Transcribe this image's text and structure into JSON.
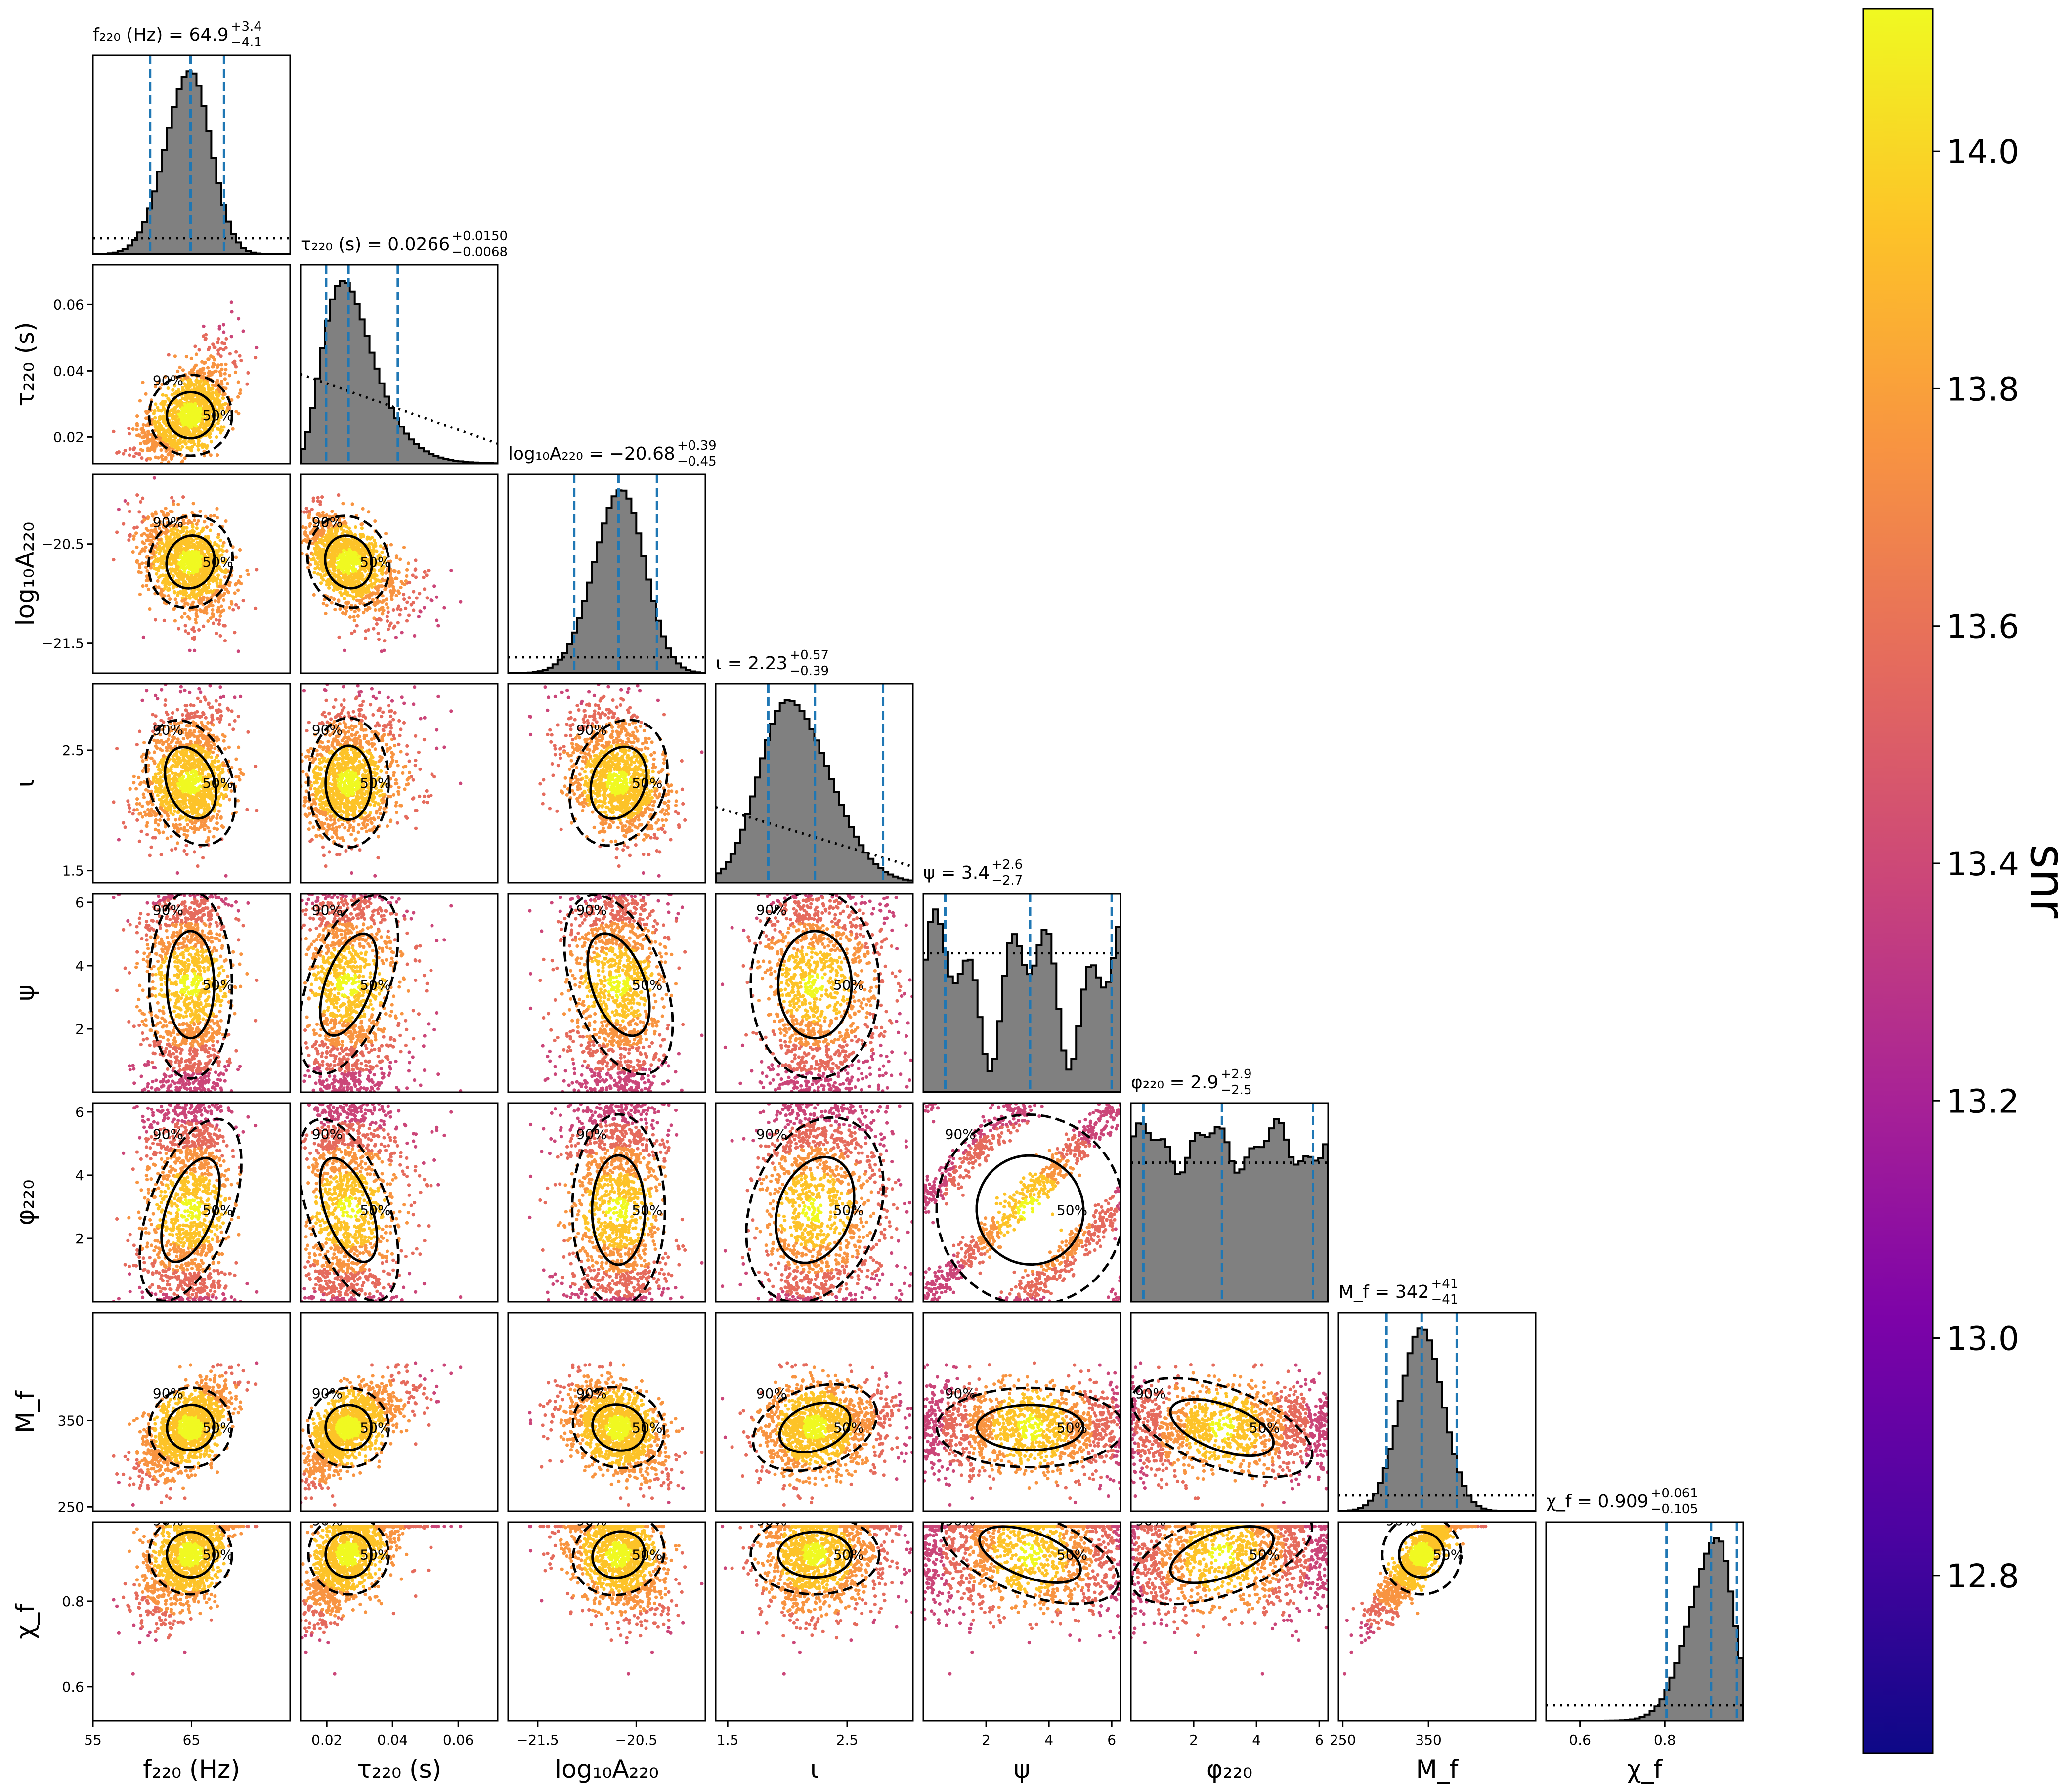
{
  "chart_data": {
    "type": "scatter",
    "kind": "corner plot",
    "parameters": [
      {
        "id": "f220",
        "label": "f₂₂₀ (Hz)",
        "range": [
          55,
          75
        ],
        "ticks": [
          55,
          65
        ],
        "tick_labels": [
          "55",
          "65"
        ],
        "title_pre": "f₂₂₀ (Hz) = ",
        "median": "64.9",
        "plus": "+3.4",
        "minus": "−4.1",
        "quantiles": [
          60.8,
          64.9,
          68.3
        ],
        "mode": 64.9,
        "prior": "flat"
      },
      {
        "id": "tau220",
        "label": "τ₂₂₀ (s)",
        "range": [
          0.012,
          0.072
        ],
        "ticks": [
          0.02,
          0.04,
          0.06
        ],
        "tick_labels": [
          "0.02",
          "0.04",
          "0.06"
        ],
        "title_pre": "τ₂₂₀ (s) = ",
        "median": "0.0266",
        "plus": "+0.0150",
        "minus": "−0.0068",
        "quantiles": [
          0.0198,
          0.0266,
          0.0416
        ],
        "mode": 0.025,
        "prior": "decreasing"
      },
      {
        "id": "logA",
        "label": "log₁₀A₂₂₀",
        "range": [
          -21.8,
          -19.8
        ],
        "ticks": [
          -21.5,
          -20.5
        ],
        "tick_labels": [
          "−21.5",
          "−20.5"
        ],
        "title_pre": "log₁₀A₂₂₀ = ",
        "median": "−20.68",
        "plus": "+0.39",
        "minus": "−0.45",
        "quantiles": [
          -21.13,
          -20.68,
          -20.29
        ],
        "mode": -20.65,
        "prior": "flat"
      },
      {
        "id": "iota",
        "label": "ι",
        "range": [
          1.4,
          3.05
        ],
        "ticks": [
          1.5,
          2.5
        ],
        "tick_labels": [
          "1.5",
          "2.5"
        ],
        "title_pre": "ι = ",
        "median": "2.23",
        "plus": "+0.57",
        "minus": "−0.39",
        "quantiles": [
          1.84,
          2.23,
          2.8
        ],
        "mode": 2.0,
        "prior": "sine"
      },
      {
        "id": "psi",
        "label": "ψ",
        "range": [
          0,
          6.28
        ],
        "ticks": [
          2,
          4,
          6
        ],
        "tick_labels": [
          "2",
          "4",
          "6"
        ],
        "title_pre": "ψ = ",
        "median": "3.4",
        "plus": "+2.6",
        "minus": "−2.7",
        "quantiles": [
          0.7,
          3.4,
          6.0
        ],
        "mode": 1.8,
        "prior": "flat"
      },
      {
        "id": "phi220",
        "label": "φ₂₂₀",
        "range": [
          0,
          6.28
        ],
        "ticks": [
          2,
          4,
          6
        ],
        "tick_labels": [
          "2",
          "4",
          "6"
        ],
        "title_pre": "φ₂₂₀ = ",
        "median": "2.9",
        "plus": "+2.9",
        "minus": "−2.5",
        "quantiles": [
          0.4,
          2.9,
          5.8
        ],
        "mode": 1.2,
        "prior": "flat"
      },
      {
        "id": "Mf",
        "label": "M_f",
        "range": [
          245,
          475
        ],
        "ticks": [
          250,
          350
        ],
        "tick_labels": [
          "250",
          "350"
        ],
        "title_pre": "M_f = ",
        "median": "342",
        "plus": "+41",
        "minus": "−41",
        "quantiles": [
          301,
          342,
          383
        ],
        "mode": 342,
        "prior": "flat"
      },
      {
        "id": "chif",
        "label": "χ_f",
        "range": [
          0.52,
          0.985
        ],
        "ticks": [
          0.6,
          0.8
        ],
        "tick_labels": [
          "0.6",
          "0.8"
        ],
        "title_pre": "χ_f = ",
        "median": "0.909",
        "plus": "+0.061",
        "minus": "−0.105",
        "quantiles": [
          0.804,
          0.909,
          0.97
        ],
        "mode": 0.925,
        "prior": "flat"
      }
    ],
    "contour_levels": [
      "50%",
      "90%"
    ],
    "colorbar": {
      "label": "snr",
      "min": 12.65,
      "max": 14.12,
      "ticks": [
        12.8,
        13.0,
        13.2,
        13.4,
        13.6,
        13.8,
        14.0
      ],
      "tick_labels": [
        "12.8",
        "13.0",
        "13.2",
        "13.4",
        "13.6",
        "13.8",
        "14.0"
      ],
      "colormap": "plasma"
    },
    "colors": {
      "histogram_fill": "#808080",
      "quantile_lines": "#1f77b4",
      "contours": "#000000"
    }
  }
}
